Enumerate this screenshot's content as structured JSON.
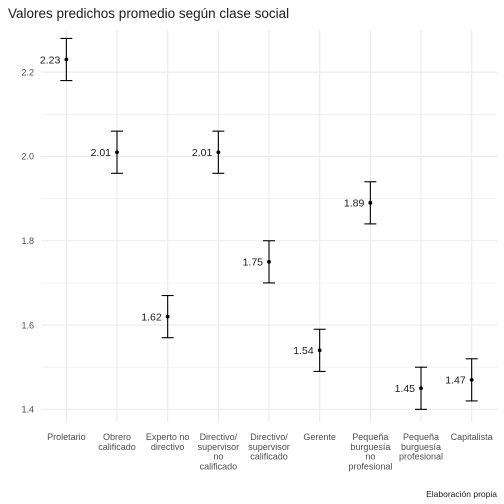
{
  "chart_data": {
    "type": "scatter",
    "title": "Valores predichos promedio según clase social",
    "caption": "Elaboración propia",
    "xlabel": "",
    "ylabel": "",
    "categories": [
      "Proletario",
      "Obrero calificado",
      "Experto no directivo",
      "Directivo/ supervisor no calificado",
      "Directivo/ supervisor calificado",
      "Gerente",
      "Pequeña burguesía no profesional",
      "Pequeña burguesía profesional",
      "Capitalista"
    ],
    "category_lines": [
      [
        "Proletario"
      ],
      [
        "Obrero",
        "calificado"
      ],
      [
        "Experto no",
        "directivo"
      ],
      [
        "Directivo/",
        "supervisor",
        "no",
        "calificado"
      ],
      [
        "Directivo/",
        "supervisor",
        "calificado"
      ],
      [
        "Gerente"
      ],
      [
        "Pequeña",
        "burguesía",
        "no",
        "profesional"
      ],
      [
        "Pequeña",
        "burguesía",
        "profesional"
      ],
      [
        "Capitalista"
      ]
    ],
    "values": [
      2.23,
      2.01,
      1.62,
      2.01,
      1.75,
      1.54,
      1.89,
      1.45,
      1.47
    ],
    "value_labels": [
      "2.23",
      "2.01",
      "1.62",
      "2.01",
      "1.75",
      "1.54",
      "1.89",
      "1.45",
      "1.47"
    ],
    "error_low": [
      2.18,
      1.96,
      1.57,
      1.96,
      1.7,
      1.49,
      1.84,
      1.4,
      1.42
    ],
    "error_high": [
      2.28,
      2.06,
      1.67,
      2.06,
      1.8,
      1.59,
      1.94,
      1.5,
      1.52
    ],
    "y_ticks": [
      1.4,
      1.6,
      1.8,
      2.0,
      2.2
    ],
    "y_tick_labels": [
      "1.4",
      "1.6",
      "1.8",
      "2.0",
      "2.2"
    ],
    "ylim": [
      1.37,
      2.3
    ],
    "grid": true,
    "legend": "none",
    "colors": {
      "grid": "#ebebeb",
      "mark": "#000000",
      "text": "#4d4d4d"
    }
  }
}
